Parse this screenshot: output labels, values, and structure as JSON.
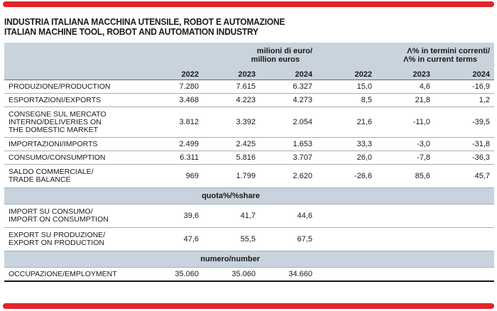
{
  "title_it": "INDUSTRIA ITALIANA MACCHINA UTENSILE, ROBOT E AUTOMAZIONE",
  "title_en": "ITALIAN MACHINE TOOL, ROBOT AND AUTOMATION INDUSTRY",
  "accent_color": "#e0262b",
  "header_fill": "#c9d3dd",
  "units_left": [
    "milioni di euro/",
    "million euros"
  ],
  "units_right": [
    "Λ% in termini correnti/",
    "Λ% in current terms"
  ],
  "years": [
    "2022",
    "2023",
    "2024",
    "2022",
    "2023",
    "2024"
  ],
  "rows": [
    {
      "label": [
        "PRODUZIONE/PRODUCTION"
      ],
      "values": [
        "7.280",
        "7.615",
        "6.327",
        "15,0",
        "4,6",
        "-16,9"
      ]
    },
    {
      "label": [
        "ESPORTAZIONI/EXPORTS"
      ],
      "values": [
        "3.468",
        "4.223",
        "4.273",
        "8,5",
        "21,8",
        "1,2"
      ]
    },
    {
      "label": [
        "CONSEGNE SUL MERCATO",
        "INTERNO/DELIVERIES ON",
        "THE DOMESTIC MARKET"
      ],
      "values": [
        "3.812",
        "3.392",
        "2.054",
        "21,6",
        "-11,0",
        "-39,5"
      ]
    },
    {
      "label": [
        "IMPORTAZIONI/IMPORTS"
      ],
      "values": [
        "2.499",
        "2.425",
        "1.653",
        "33,3",
        "-3,0",
        "-31,8"
      ]
    },
    {
      "label": [
        "CONSUMO/CONSUMPTION"
      ],
      "values": [
        "6.311",
        "5.816",
        "3.707",
        "26,0",
        "-7,8",
        "-36,3"
      ]
    },
    {
      "label": [
        "SALDO COMMERCIALE/",
        "TRADE BALANCE"
      ],
      "values": [
        "969",
        "1.799",
        "2.620",
        "-26,6",
        "85,6",
        "45,7"
      ]
    }
  ],
  "share_title": "quota%/%share",
  "share_rows": [
    {
      "label": [
        "IMPORT SU CONSUMO/",
        "IMPORT ON CONSUMPTION"
      ],
      "values": [
        "39,6",
        "41,7",
        "44,6"
      ]
    },
    {
      "label": [
        "EXPORT SU PRODUZIONE/",
        "EXPORT ON PRODUCTION"
      ],
      "values": [
        "47,6",
        "55,5",
        "67,5"
      ]
    }
  ],
  "number_title": "numero/number",
  "number_rows": [
    {
      "label": [
        "OCCUPAZIONE/EMPLOYMENT"
      ],
      "values": [
        "35.060",
        "35.060",
        "34.660"
      ]
    }
  ]
}
